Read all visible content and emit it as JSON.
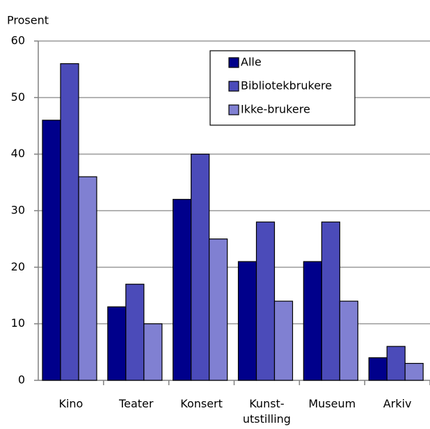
{
  "chart_data": {
    "type": "bar",
    "y_label": "Prosent",
    "categories": [
      "Kino",
      "Teater",
      "Konsert",
      "Kunst-\nutstilling",
      "Museum",
      "Arkiv"
    ],
    "series": [
      {
        "name": "Alle",
        "color": "#00008b",
        "values": [
          46,
          13,
          32,
          21,
          21,
          4
        ]
      },
      {
        "name": "Bibliotekbrukere",
        "color": "#4b4bb9",
        "values": [
          56,
          17,
          40,
          28,
          28,
          6
        ]
      },
      {
        "name": "Ikke-brukere",
        "color": "#8080d2",
        "values": [
          36,
          10,
          25,
          14,
          14,
          3
        ]
      }
    ],
    "ylim": [
      0,
      60
    ],
    "yticks": [
      0,
      10,
      20,
      30,
      40,
      50,
      60
    ],
    "grid": true,
    "legend": "top-right"
  }
}
